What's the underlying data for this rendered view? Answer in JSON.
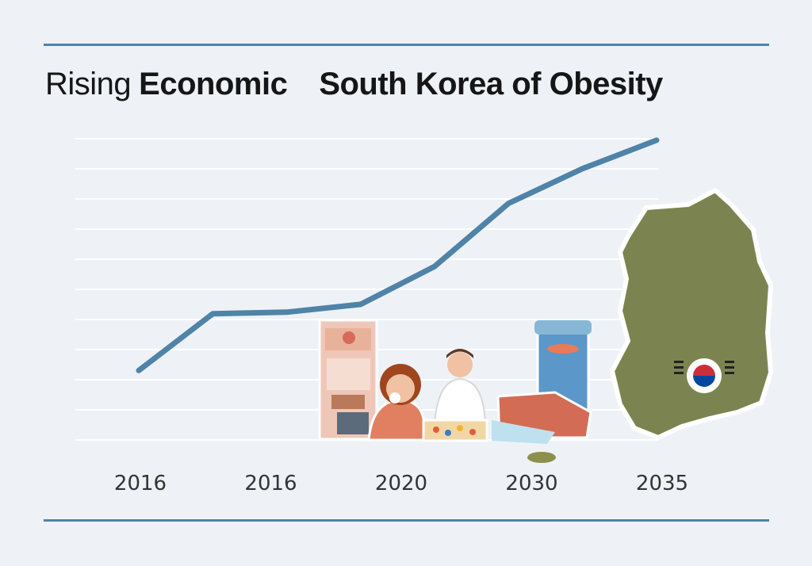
{
  "title": {
    "part_a": "Rising",
    "part_b": "Economic",
    "part_c": "South Korea of Obesity"
  },
  "colors": {
    "line": "#4f83a8",
    "rule": "#4f83a8",
    "grid": "#ffffff",
    "map": "#7b8450",
    "background": "#eef2f6"
  },
  "icons": [
    "food-stack-illustration",
    "person-eating-illustration",
    "chef-illustration",
    "drink-cup-illustration",
    "south-korea-map-icon",
    "korean-flag-icon"
  ],
  "chart_data": {
    "type": "line",
    "categories": [
      "2016",
      "2016",
      "2020",
      "2030",
      "2035"
    ],
    "x": [
      0,
      1,
      2,
      3,
      4,
      5,
      6,
      7
    ],
    "series": [
      {
        "values": [
          22,
          40,
          40.5,
          43,
          55,
          75,
          86,
          95
        ]
      }
    ],
    "ylim": [
      0,
      100
    ],
    "grid": true,
    "legend": "none"
  }
}
